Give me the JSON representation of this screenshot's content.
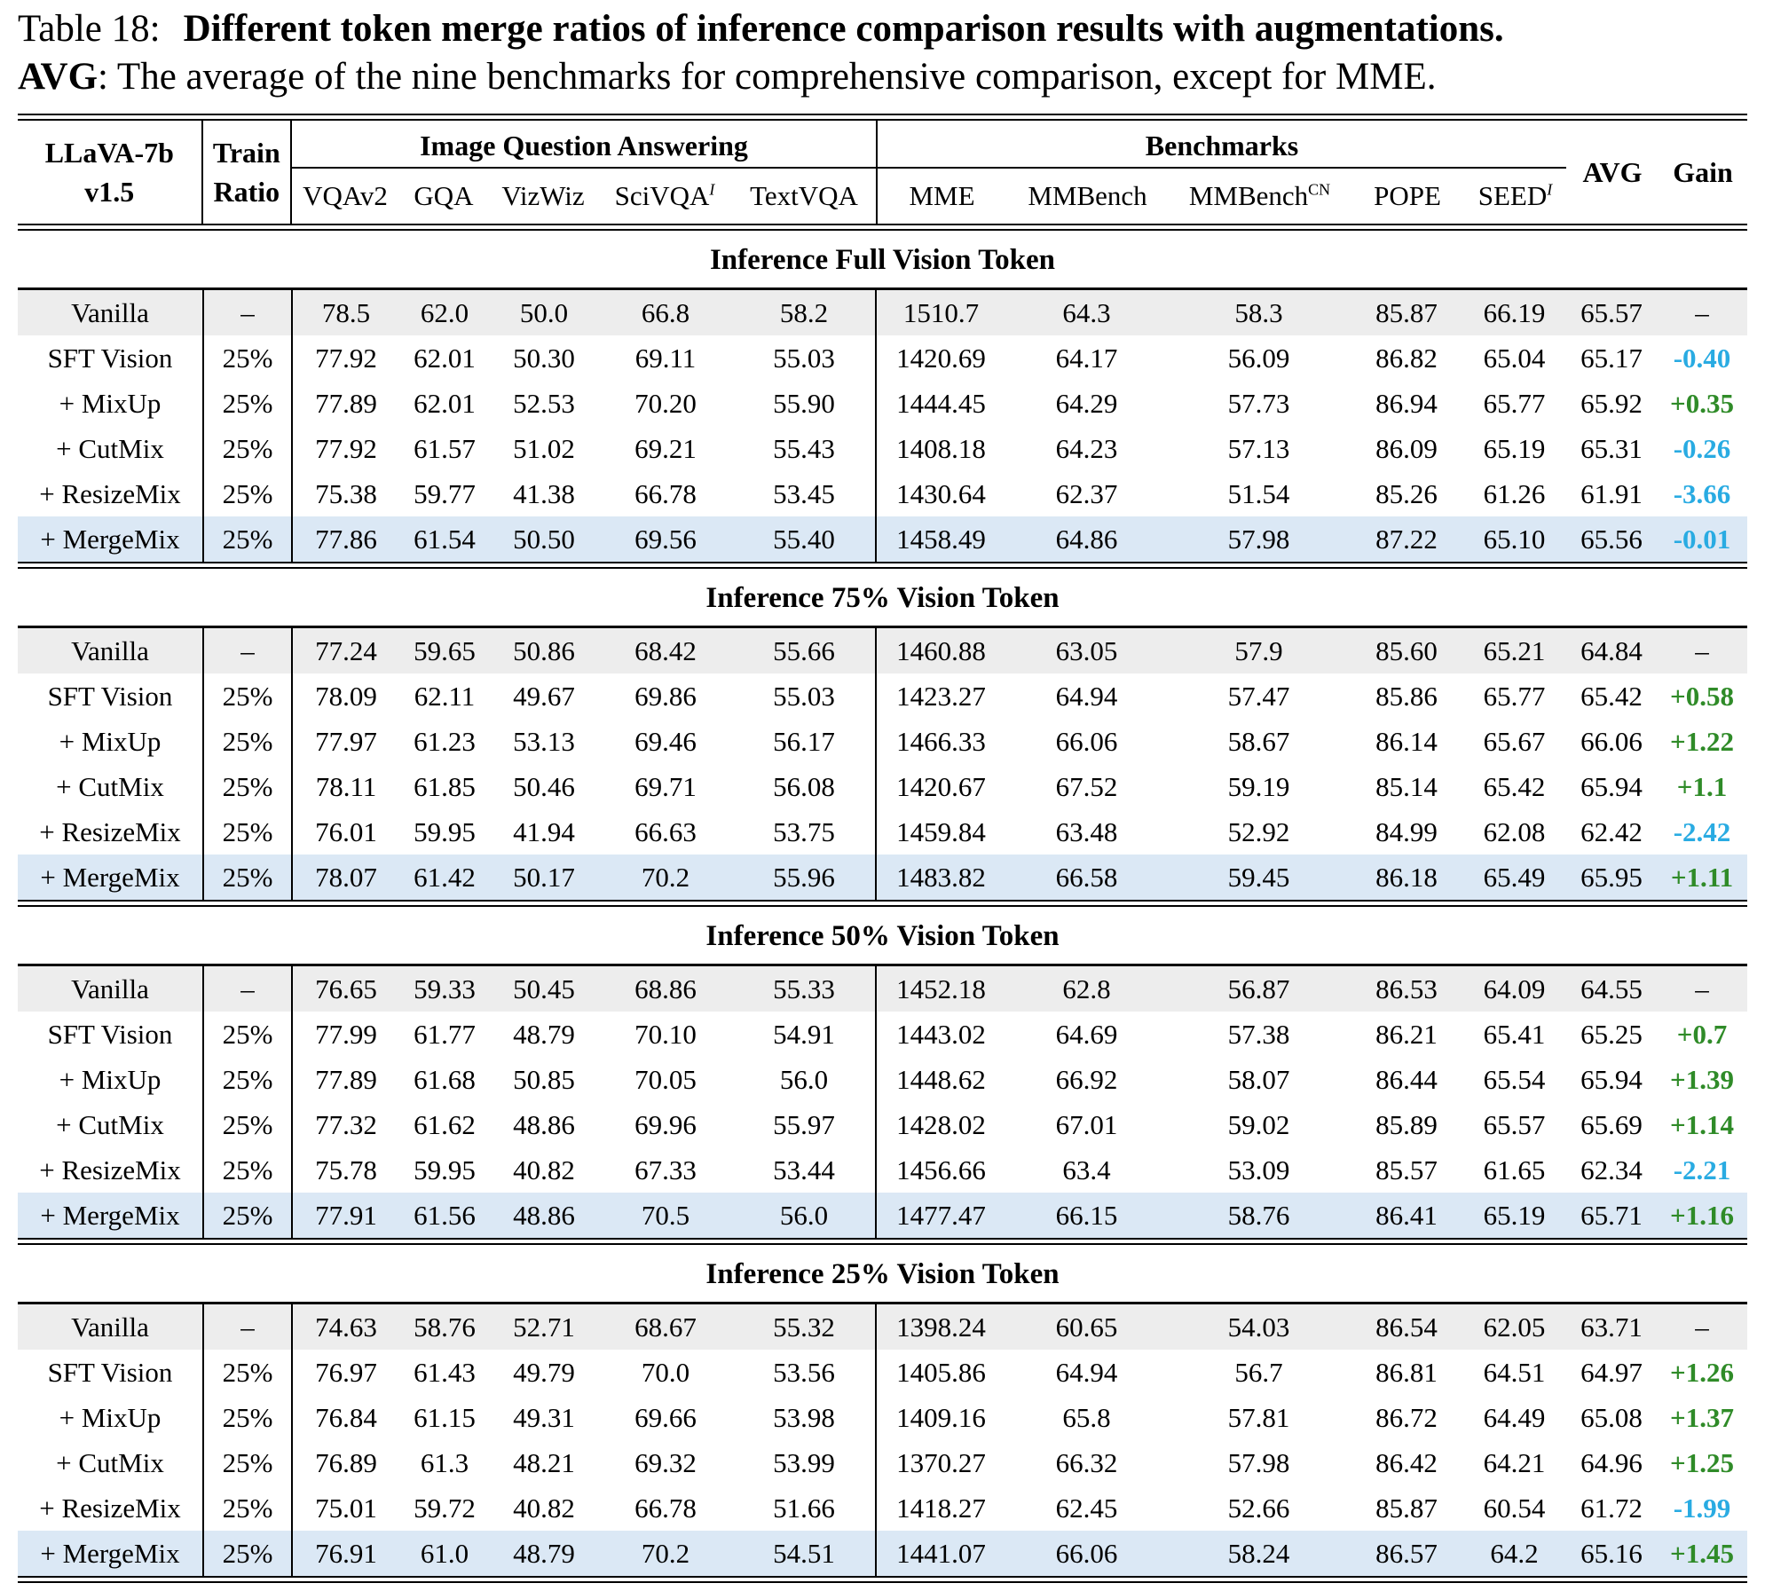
{
  "caption": {
    "prefix": "Table 18:",
    "title_bold": "Different token merge ratios of inference comparison results with augmentations",
    "title_period": ".",
    "avg_term": "AVG",
    "avg_desc": ": The average of the nine benchmarks for comprehensive comparison, except for MME."
  },
  "colors": {
    "gain_positive": "#2F8B28",
    "gain_negative": "#29ABE2",
    "row_gray": "#EDEDED",
    "row_highlight": "#DBE8F5"
  },
  "header": {
    "model_line1": "LLaVA-7b",
    "model_line2": "v1.5",
    "train_line1": "Train",
    "train_line2": "Ratio",
    "group_iqa": "Image Question Answering",
    "group_bench": "Benchmarks",
    "avg": "AVG",
    "gain": "Gain",
    "iqa_columns": [
      {
        "key": "vqav2",
        "label": "VQAv2",
        "sup": ""
      },
      {
        "key": "gqa",
        "label": "GQA",
        "sup": ""
      },
      {
        "key": "vizwiz",
        "label": "VizWiz",
        "sup": ""
      },
      {
        "key": "scivqa",
        "label": "SciVQA",
        "sup": "I",
        "sup_italic": true
      },
      {
        "key": "textvqa",
        "label": "TextVQA",
        "sup": ""
      }
    ],
    "bench_columns": [
      {
        "key": "mme",
        "label": "MME",
        "sup": ""
      },
      {
        "key": "mmbench",
        "label": "MMBench",
        "sup": ""
      },
      {
        "key": "mmbench-cn",
        "label": "MMBench",
        "sup": "CN"
      },
      {
        "key": "pope",
        "label": "POPE",
        "sup": ""
      },
      {
        "key": "seed",
        "label": "SEED",
        "sup": "I",
        "sup_italic": true
      }
    ]
  },
  "sections": [
    {
      "title": "Inference Full Vision Token",
      "rows": [
        {
          "label": "Vanilla",
          "ratio": "–",
          "values": [
            "78.5",
            "62.0",
            "50.0",
            "66.8",
            "58.2",
            "1510.7",
            "64.3",
            "58.3",
            "85.87",
            "66.19",
            "65.57"
          ],
          "gain": "–",
          "gain_type": "none",
          "bg": "gray"
        },
        {
          "label": "SFT Vision",
          "ratio": "25%",
          "values": [
            "77.92",
            "62.01",
            "50.30",
            "69.11",
            "55.03",
            "1420.69",
            "64.17",
            "56.09",
            "86.82",
            "65.04",
            "65.17"
          ],
          "gain": "-0.40",
          "gain_type": "neg",
          "bg": ""
        },
        {
          "label": "+ MixUp",
          "ratio": "25%",
          "values": [
            "77.89",
            "62.01",
            "52.53",
            "70.20",
            "55.90",
            "1444.45",
            "64.29",
            "57.73",
            "86.94",
            "65.77",
            "65.92"
          ],
          "gain": "+0.35",
          "gain_type": "pos",
          "bg": ""
        },
        {
          "label": "+ CutMix",
          "ratio": "25%",
          "values": [
            "77.92",
            "61.57",
            "51.02",
            "69.21",
            "55.43",
            "1408.18",
            "64.23",
            "57.13",
            "86.09",
            "65.19",
            "65.31"
          ],
          "gain": "-0.26",
          "gain_type": "neg",
          "bg": ""
        },
        {
          "label": "+ ResizeMix",
          "ratio": "25%",
          "values": [
            "75.38",
            "59.77",
            "41.38",
            "66.78",
            "53.45",
            "1430.64",
            "62.37",
            "51.54",
            "85.26",
            "61.26",
            "61.91"
          ],
          "gain": "-3.66",
          "gain_type": "neg",
          "bg": ""
        },
        {
          "label": "+ MergeMix",
          "ratio": "25%",
          "values": [
            "77.86",
            "61.54",
            "50.50",
            "69.56",
            "55.40",
            "1458.49",
            "64.86",
            "57.98",
            "87.22",
            "65.10",
            "65.56"
          ],
          "gain": "-0.01",
          "gain_type": "neg",
          "bg": "blue"
        }
      ]
    },
    {
      "title": "Inference 75% Vision Token",
      "rows": [
        {
          "label": "Vanilla",
          "ratio": "–",
          "values": [
            "77.24",
            "59.65",
            "50.86",
            "68.42",
            "55.66",
            "1460.88",
            "63.05",
            "57.9",
            "85.60",
            "65.21",
            "64.84"
          ],
          "gain": "–",
          "gain_type": "none",
          "bg": "gray"
        },
        {
          "label": "SFT Vision",
          "ratio": "25%",
          "values": [
            "78.09",
            "62.11",
            "49.67",
            "69.86",
            "55.03",
            "1423.27",
            "64.94",
            "57.47",
            "85.86",
            "65.77",
            "65.42"
          ],
          "gain": "+0.58",
          "gain_type": "pos",
          "bg": ""
        },
        {
          "label": "+ MixUp",
          "ratio": "25%",
          "values": [
            "77.97",
            "61.23",
            "53.13",
            "69.46",
            "56.17",
            "1466.33",
            "66.06",
            "58.67",
            "86.14",
            "65.67",
            "66.06"
          ],
          "gain": "+1.22",
          "gain_type": "pos",
          "bg": ""
        },
        {
          "label": "+ CutMix",
          "ratio": "25%",
          "values": [
            "78.11",
            "61.85",
            "50.46",
            "69.71",
            "56.08",
            "1420.67",
            "67.52",
            "59.19",
            "85.14",
            "65.42",
            "65.94"
          ],
          "gain": "+1.1",
          "gain_type": "pos",
          "bg": ""
        },
        {
          "label": "+ ResizeMix",
          "ratio": "25%",
          "values": [
            "76.01",
            "59.95",
            "41.94",
            "66.63",
            "53.75",
            "1459.84",
            "63.48",
            "52.92",
            "84.99",
            "62.08",
            "62.42"
          ],
          "gain": "-2.42",
          "gain_type": "neg",
          "bg": ""
        },
        {
          "label": "+ MergeMix",
          "ratio": "25%",
          "values": [
            "78.07",
            "61.42",
            "50.17",
            "70.2",
            "55.96",
            "1483.82",
            "66.58",
            "59.45",
            "86.18",
            "65.49",
            "65.95"
          ],
          "gain": "+1.11",
          "gain_type": "pos",
          "bg": "blue"
        }
      ]
    },
    {
      "title": "Inference 50% Vision Token",
      "rows": [
        {
          "label": "Vanilla",
          "ratio": "–",
          "values": [
            "76.65",
            "59.33",
            "50.45",
            "68.86",
            "55.33",
            "1452.18",
            "62.8",
            "56.87",
            "86.53",
            "64.09",
            "64.55"
          ],
          "gain": "–",
          "gain_type": "none",
          "bg": "gray"
        },
        {
          "label": "SFT Vision",
          "ratio": "25%",
          "values": [
            "77.99",
            "61.77",
            "48.79",
            "70.10",
            "54.91",
            "1443.02",
            "64.69",
            "57.38",
            "86.21",
            "65.41",
            "65.25"
          ],
          "gain": "+0.7",
          "gain_type": "pos",
          "bg": ""
        },
        {
          "label": "+ MixUp",
          "ratio": "25%",
          "values": [
            "77.89",
            "61.68",
            "50.85",
            "70.05",
            "56.0",
            "1448.62",
            "66.92",
            "58.07",
            "86.44",
            "65.54",
            "65.94"
          ],
          "gain": "+1.39",
          "gain_type": "pos",
          "bg": ""
        },
        {
          "label": "+ CutMix",
          "ratio": "25%",
          "values": [
            "77.32",
            "61.62",
            "48.86",
            "69.96",
            "55.97",
            "1428.02",
            "67.01",
            "59.02",
            "85.89",
            "65.57",
            "65.69"
          ],
          "gain": "+1.14",
          "gain_type": "pos",
          "bg": ""
        },
        {
          "label": "+ ResizeMix",
          "ratio": "25%",
          "values": [
            "75.78",
            "59.95",
            "40.82",
            "67.33",
            "53.44",
            "1456.66",
            "63.4",
            "53.09",
            "85.57",
            "61.65",
            "62.34"
          ],
          "gain": "-2.21",
          "gain_type": "neg",
          "bg": ""
        },
        {
          "label": "+ MergeMix",
          "ratio": "25%",
          "values": [
            "77.91",
            "61.56",
            "48.86",
            "70.5",
            "56.0",
            "1477.47",
            "66.15",
            "58.76",
            "86.41",
            "65.19",
            "65.71"
          ],
          "gain": "+1.16",
          "gain_type": "pos",
          "bg": "blue"
        }
      ]
    },
    {
      "title": "Inference 25% Vision Token",
      "rows": [
        {
          "label": "Vanilla",
          "ratio": "–",
          "values": [
            "74.63",
            "58.76",
            "52.71",
            "68.67",
            "55.32",
            "1398.24",
            "60.65",
            "54.03",
            "86.54",
            "62.05",
            "63.71"
          ],
          "gain": "–",
          "gain_type": "none",
          "bg": "gray"
        },
        {
          "label": "SFT Vision",
          "ratio": "25%",
          "values": [
            "76.97",
            "61.43",
            "49.79",
            "70.0",
            "53.56",
            "1405.86",
            "64.94",
            "56.7",
            "86.81",
            "64.51",
            "64.97"
          ],
          "gain": "+1.26",
          "gain_type": "pos",
          "bg": ""
        },
        {
          "label": "+ MixUp",
          "ratio": "25%",
          "values": [
            "76.84",
            "61.15",
            "49.31",
            "69.66",
            "53.98",
            "1409.16",
            "65.8",
            "57.81",
            "86.72",
            "64.49",
            "65.08"
          ],
          "gain": "+1.37",
          "gain_type": "pos",
          "bg": ""
        },
        {
          "label": "+ CutMix",
          "ratio": "25%",
          "values": [
            "76.89",
            "61.3",
            "48.21",
            "69.32",
            "53.99",
            "1370.27",
            "66.32",
            "57.98",
            "86.42",
            "64.21",
            "64.96"
          ],
          "gain": "+1.25",
          "gain_type": "pos",
          "bg": ""
        },
        {
          "label": "+ ResizeMix",
          "ratio": "25%",
          "values": [
            "75.01",
            "59.72",
            "40.82",
            "66.78",
            "51.66",
            "1418.27",
            "62.45",
            "52.66",
            "85.87",
            "60.54",
            "61.72"
          ],
          "gain": "-1.99",
          "gain_type": "neg",
          "bg": ""
        },
        {
          "label": "+ MergeMix",
          "ratio": "25%",
          "values": [
            "76.91",
            "61.0",
            "48.79",
            "70.2",
            "54.51",
            "1441.07",
            "66.06",
            "58.24",
            "86.57",
            "64.2",
            "65.16"
          ],
          "gain": "+1.45",
          "gain_type": "pos",
          "bg": "blue"
        }
      ]
    }
  ]
}
